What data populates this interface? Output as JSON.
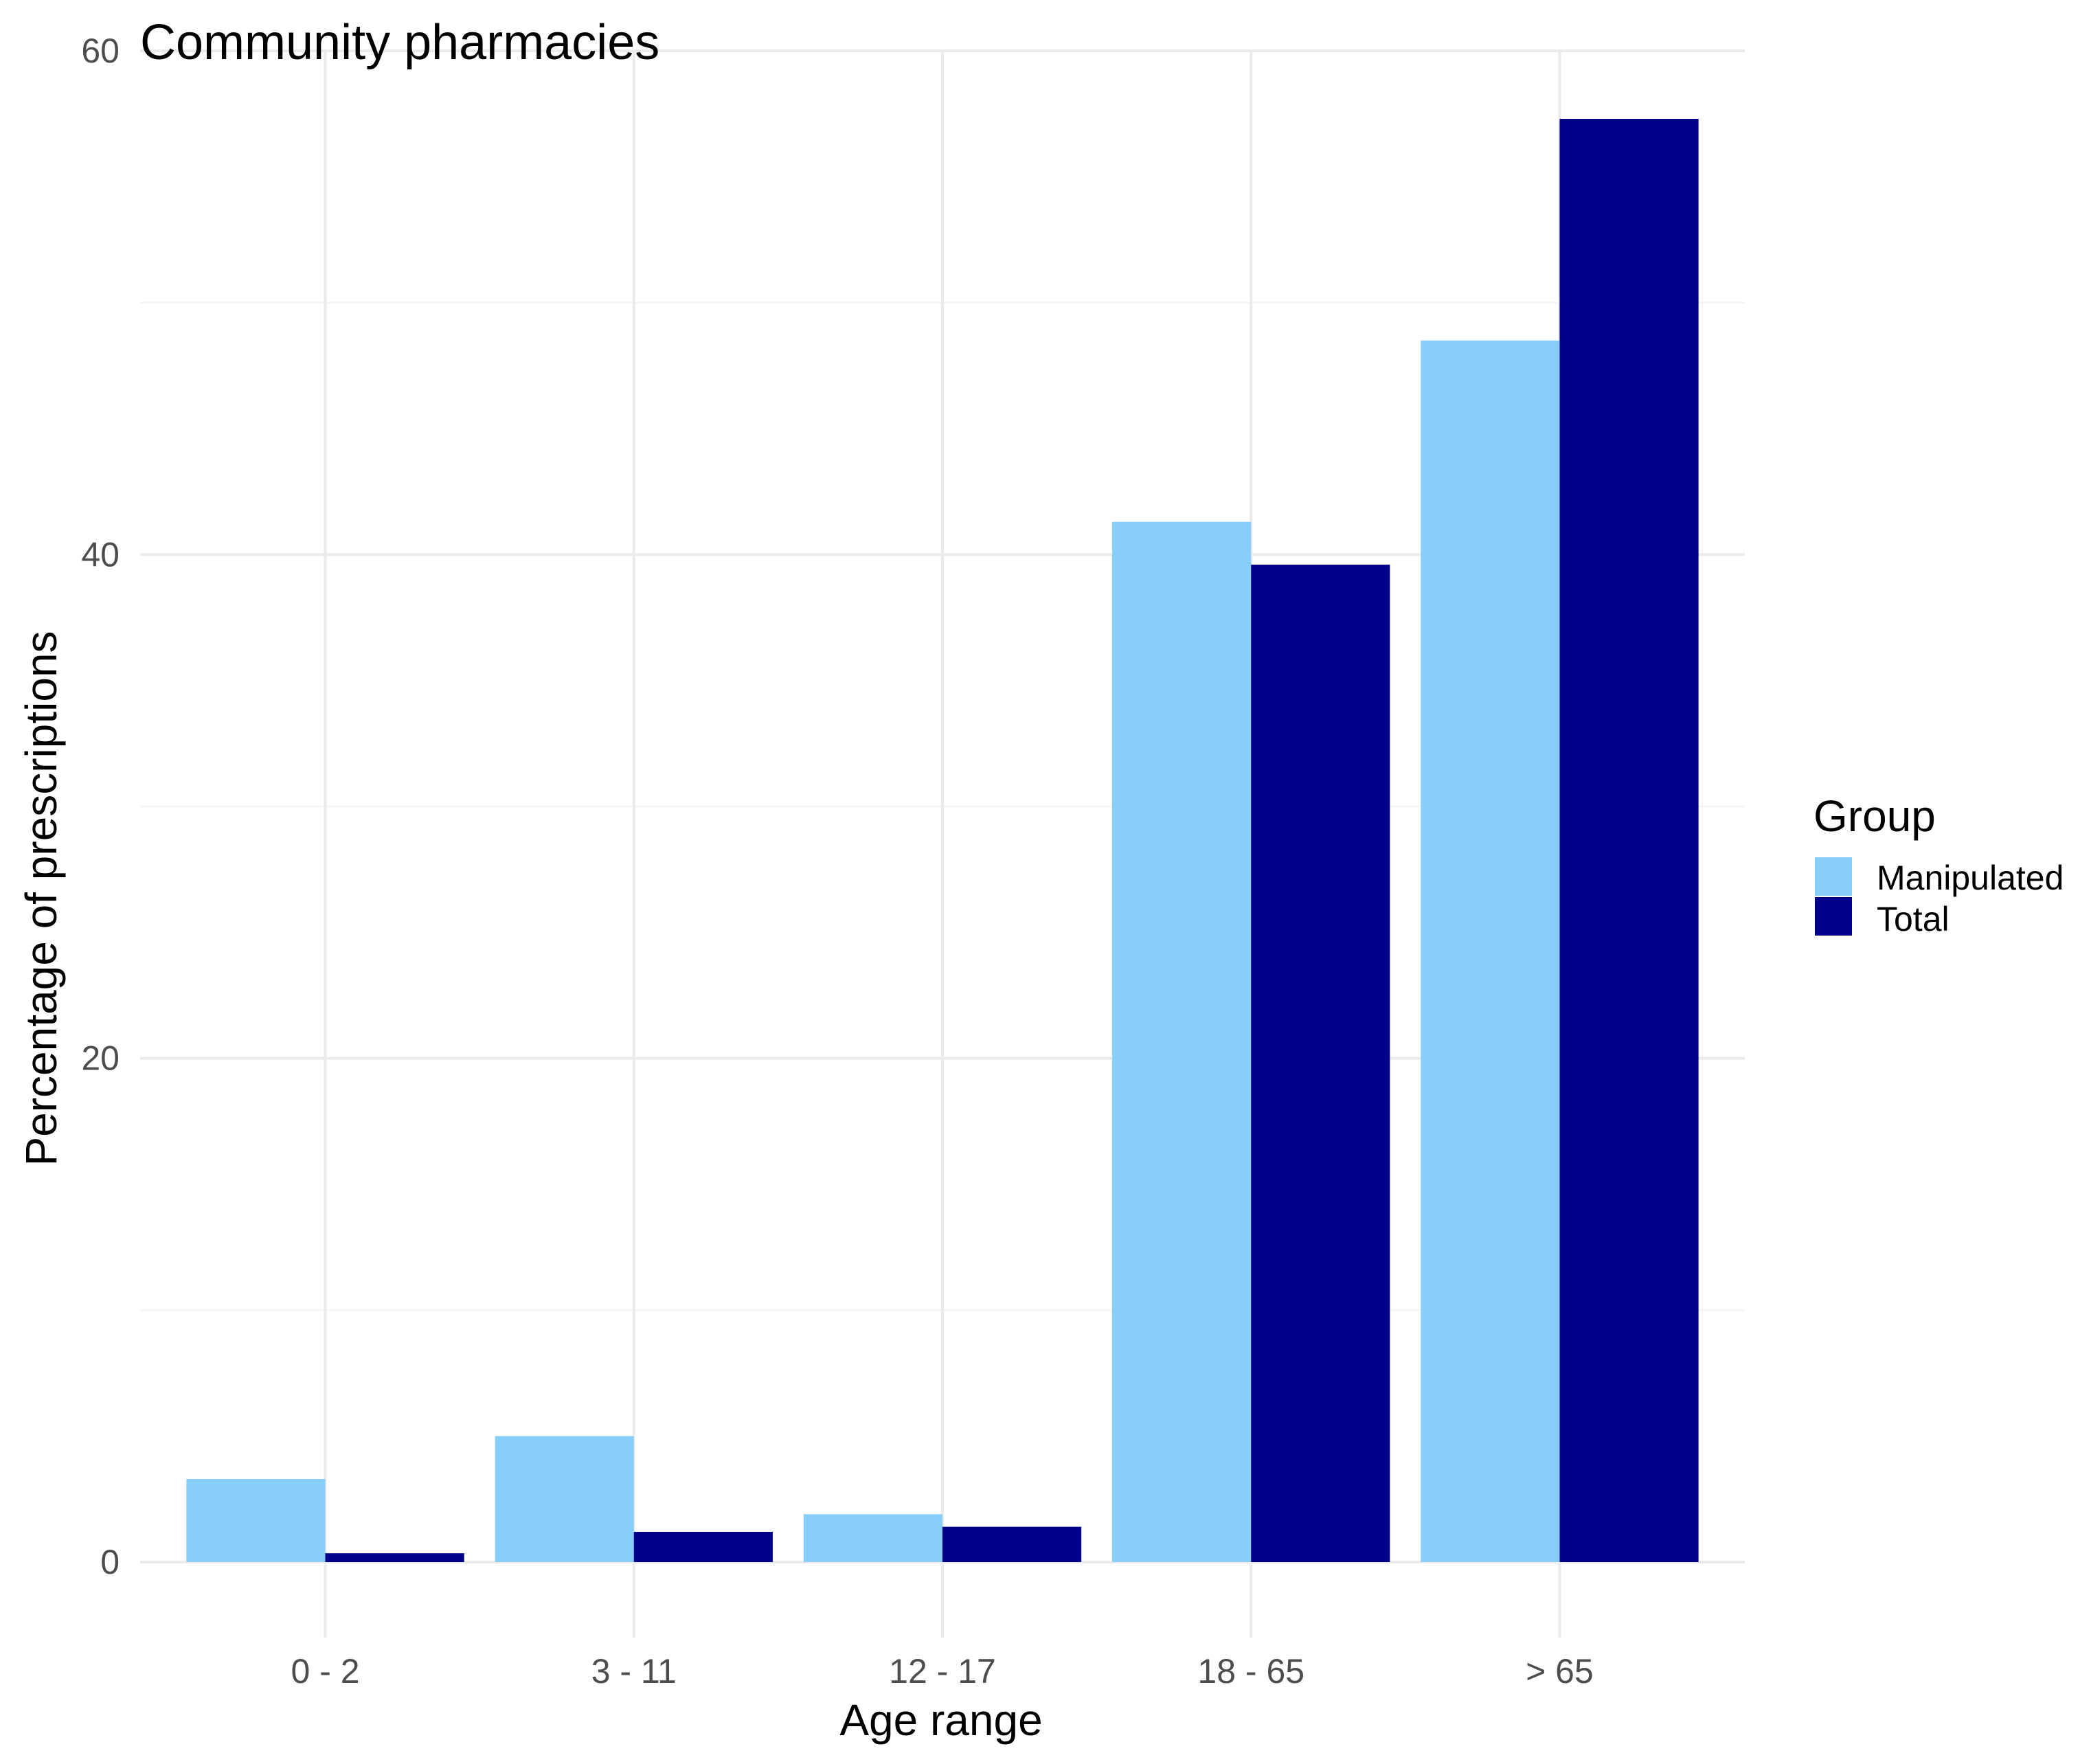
{
  "chart_data": {
    "type": "bar",
    "title": "Community pharmacies",
    "xlabel": "Age range",
    "ylabel": "Percentage of prescriptions",
    "categories": [
      "0 - 2",
      "3 - 11",
      "12 - 17",
      "18 - 65",
      "> 65"
    ],
    "series": [
      {
        "name": "Manipulated",
        "color": "#87cefa",
        "values": [
          3.3,
          5.0,
          1.9,
          41.3,
          48.5
        ]
      },
      {
        "name": "Total",
        "color": "#00008b",
        "values": [
          0.35,
          1.2,
          1.4,
          39.6,
          57.3
        ]
      }
    ],
    "ylim": [
      -3,
      60
    ],
    "yticks": [
      0,
      20,
      40,
      60
    ],
    "ytick_labels": [
      "0",
      "20",
      "40",
      "60"
    ],
    "grid": true,
    "legend": {
      "title": "Group",
      "position": "right"
    }
  }
}
